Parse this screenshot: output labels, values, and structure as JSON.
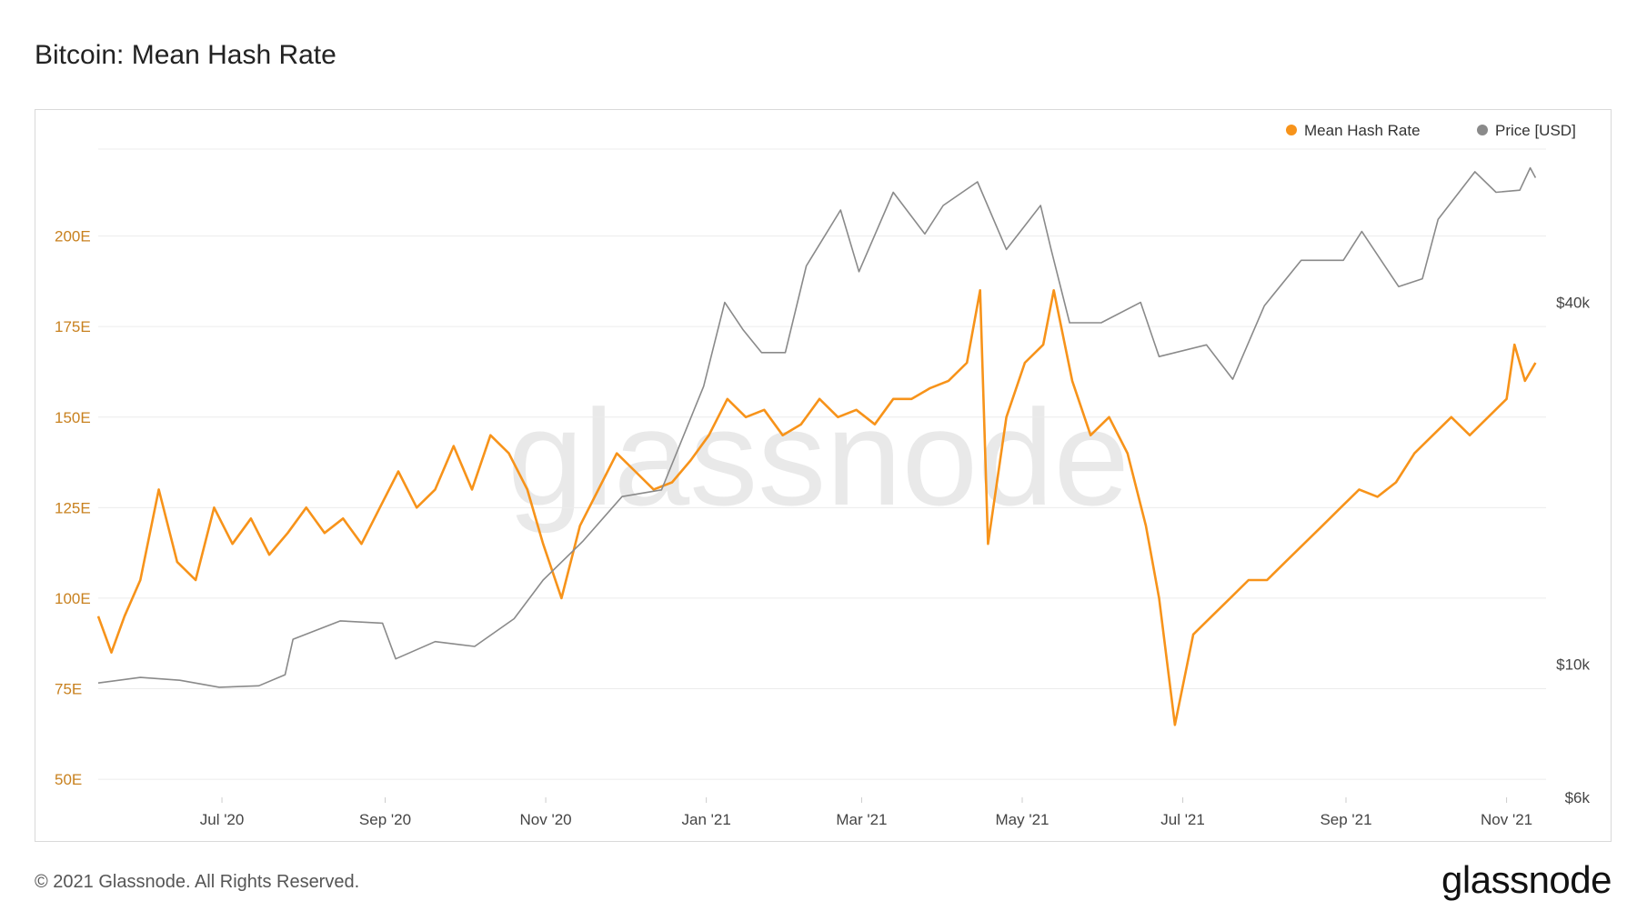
{
  "title": "Bitcoin: Mean Hash Rate",
  "footer": "© 2021 Glassnode. All Rights Reserved.",
  "brand": "glassnode",
  "watermark": "glassnode",
  "colors": {
    "hash": "#f7931a",
    "price": "#8a8a8a",
    "grid": "#ececec",
    "left_axis_text": "#c8811f"
  },
  "chart_data": {
    "type": "line",
    "title": "Bitcoin: Mean Hash Rate",
    "x_ticks": [
      "Jul '20",
      "Sep '20",
      "Nov '20",
      "Jan '21",
      "Mar '21",
      "May '21",
      "Jul '21",
      "Sep '21",
      "Nov '21"
    ],
    "y_left": {
      "unit": "EH/s",
      "ticks": [
        50,
        75,
        100,
        125,
        150,
        175,
        200
      ],
      "tick_labels": [
        "50E",
        "75E",
        "100E",
        "125E",
        "150E",
        "175E",
        "200E"
      ],
      "range": [
        45,
        225
      ]
    },
    "y_right": {
      "scale": "log",
      "ticks": [
        6000,
        10000,
        40000
      ],
      "tick_labels": [
        "$6k",
        "$10k",
        "$40k"
      ],
      "range": [
        6000,
        73000
      ]
    },
    "legend": {
      "position": "top-right"
    },
    "grid": true,
    "series": [
      {
        "name": "Mean Hash Rate",
        "axis": "left",
        "color": "#f7931a",
        "points": [
          [
            "2020-05-15",
            95
          ],
          [
            "2020-05-20",
            85
          ],
          [
            "2020-05-25",
            95
          ],
          [
            "2020-05-31",
            105
          ],
          [
            "2020-06-07",
            130
          ],
          [
            "2020-06-14",
            110
          ],
          [
            "2020-06-21",
            105
          ],
          [
            "2020-06-28",
            125
          ],
          [
            "2020-07-05",
            115
          ],
          [
            "2020-07-12",
            122
          ],
          [
            "2020-07-19",
            112
          ],
          [
            "2020-07-26",
            118
          ],
          [
            "2020-08-02",
            125
          ],
          [
            "2020-08-09",
            118
          ],
          [
            "2020-08-16",
            122
          ],
          [
            "2020-08-23",
            115
          ],
          [
            "2020-08-30",
            125
          ],
          [
            "2020-09-06",
            135
          ],
          [
            "2020-09-13",
            125
          ],
          [
            "2020-09-20",
            130
          ],
          [
            "2020-09-27",
            142
          ],
          [
            "2020-10-04",
            130
          ],
          [
            "2020-10-11",
            145
          ],
          [
            "2020-10-18",
            140
          ],
          [
            "2020-10-25",
            130
          ],
          [
            "2020-10-31",
            115
          ],
          [
            "2020-11-07",
            100
          ],
          [
            "2020-11-14",
            120
          ],
          [
            "2020-11-21",
            130
          ],
          [
            "2020-11-28",
            140
          ],
          [
            "2020-12-05",
            135
          ],
          [
            "2020-12-12",
            130
          ],
          [
            "2020-12-19",
            132
          ],
          [
            "2020-12-26",
            138
          ],
          [
            "2021-01-02",
            145
          ],
          [
            "2021-01-09",
            155
          ],
          [
            "2021-01-16",
            150
          ],
          [
            "2021-01-23",
            152
          ],
          [
            "2021-01-30",
            145
          ],
          [
            "2021-02-06",
            148
          ],
          [
            "2021-02-13",
            155
          ],
          [
            "2021-02-20",
            150
          ],
          [
            "2021-02-27",
            152
          ],
          [
            "2021-03-06",
            148
          ],
          [
            "2021-03-13",
            155
          ],
          [
            "2021-03-20",
            155
          ],
          [
            "2021-03-27",
            158
          ],
          [
            "2021-04-03",
            160
          ],
          [
            "2021-04-10",
            165
          ],
          [
            "2021-04-15",
            185
          ],
          [
            "2021-04-18",
            115
          ],
          [
            "2021-04-25",
            150
          ],
          [
            "2021-05-02",
            165
          ],
          [
            "2021-05-09",
            170
          ],
          [
            "2021-05-13",
            185
          ],
          [
            "2021-05-20",
            160
          ],
          [
            "2021-05-27",
            145
          ],
          [
            "2021-06-03",
            150
          ],
          [
            "2021-06-10",
            140
          ],
          [
            "2021-06-17",
            120
          ],
          [
            "2021-06-22",
            100
          ],
          [
            "2021-06-28",
            65
          ],
          [
            "2021-07-05",
            90
          ],
          [
            "2021-07-12",
            95
          ],
          [
            "2021-07-19",
            100
          ],
          [
            "2021-07-26",
            105
          ],
          [
            "2021-08-02",
            105
          ],
          [
            "2021-08-09",
            110
          ],
          [
            "2021-08-16",
            115
          ],
          [
            "2021-08-23",
            120
          ],
          [
            "2021-08-30",
            125
          ],
          [
            "2021-09-06",
            130
          ],
          [
            "2021-09-13",
            128
          ],
          [
            "2021-09-20",
            132
          ],
          [
            "2021-09-27",
            140
          ],
          [
            "2021-10-04",
            145
          ],
          [
            "2021-10-11",
            150
          ],
          [
            "2021-10-18",
            145
          ],
          [
            "2021-10-25",
            150
          ],
          [
            "2021-11-01",
            155
          ],
          [
            "2021-11-04",
            170
          ],
          [
            "2021-11-08",
            160
          ],
          [
            "2021-11-12",
            165
          ]
        ]
      },
      {
        "name": "Price [USD]",
        "axis": "right",
        "color": "#8a8a8a",
        "points": [
          [
            "2020-05-15",
            9300
          ],
          [
            "2020-05-31",
            9500
          ],
          [
            "2020-06-15",
            9400
          ],
          [
            "2020-06-30",
            9150
          ],
          [
            "2020-07-15",
            9200
          ],
          [
            "2020-07-25",
            9600
          ],
          [
            "2020-07-28",
            11000
          ],
          [
            "2020-08-15",
            11800
          ],
          [
            "2020-08-31",
            11700
          ],
          [
            "2020-09-05",
            10200
          ],
          [
            "2020-09-20",
            10900
          ],
          [
            "2020-10-05",
            10700
          ],
          [
            "2020-10-20",
            11900
          ],
          [
            "2020-10-31",
            13800
          ],
          [
            "2020-11-15",
            16000
          ],
          [
            "2020-11-30",
            19000
          ],
          [
            "2020-12-15",
            19500
          ],
          [
            "2020-12-31",
            29000
          ],
          [
            "2021-01-08",
            40000
          ],
          [
            "2021-01-15",
            36000
          ],
          [
            "2021-01-22",
            33000
          ],
          [
            "2021-01-31",
            33000
          ],
          [
            "2021-02-08",
            46000
          ],
          [
            "2021-02-21",
            57000
          ],
          [
            "2021-02-28",
            45000
          ],
          [
            "2021-03-13",
            61000
          ],
          [
            "2021-03-25",
            52000
          ],
          [
            "2021-04-01",
            58000
          ],
          [
            "2021-04-14",
            63500
          ],
          [
            "2021-04-25",
            49000
          ],
          [
            "2021-05-08",
            58000
          ],
          [
            "2021-05-12",
            49000
          ],
          [
            "2021-05-19",
            37000
          ],
          [
            "2021-05-31",
            37000
          ],
          [
            "2021-06-15",
            40000
          ],
          [
            "2021-06-22",
            32500
          ],
          [
            "2021-07-10",
            34000
          ],
          [
            "2021-07-20",
            29800
          ],
          [
            "2021-08-01",
            39500
          ],
          [
            "2021-08-15",
            47000
          ],
          [
            "2021-08-31",
            47000
          ],
          [
            "2021-09-07",
            52500
          ],
          [
            "2021-09-21",
            42500
          ],
          [
            "2021-09-30",
            43800
          ],
          [
            "2021-10-06",
            55000
          ],
          [
            "2021-10-20",
            66000
          ],
          [
            "2021-10-28",
            61000
          ],
          [
            "2021-11-06",
            61500
          ],
          [
            "2021-11-10",
            67000
          ],
          [
            "2021-11-12",
            64500
          ]
        ]
      }
    ]
  }
}
